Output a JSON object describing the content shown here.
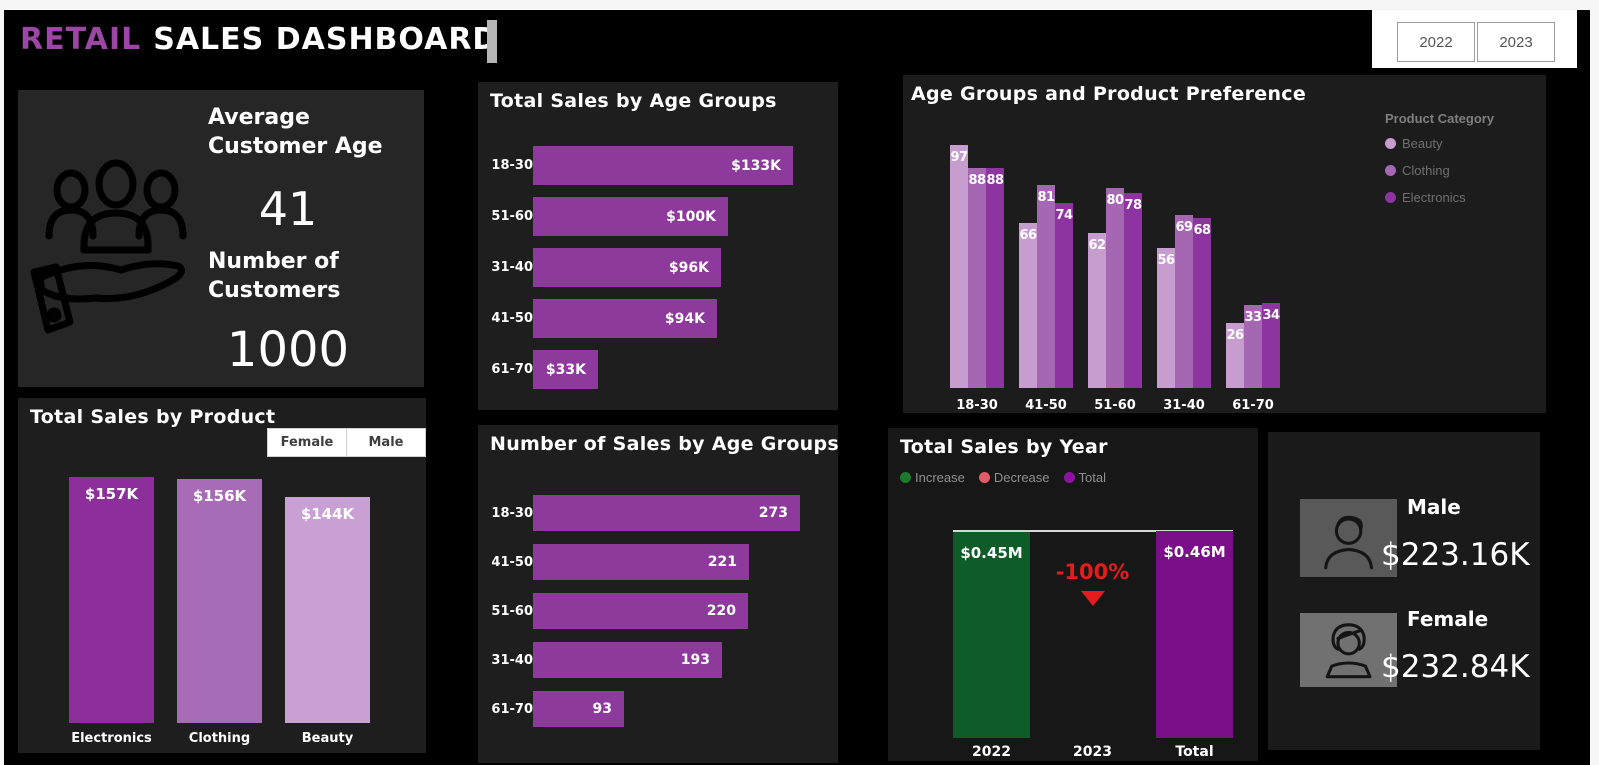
{
  "header": {
    "title_accent": "RETAIL",
    "title_rest": "SALES DASHBOARD",
    "accent_color": "#9c46a5"
  },
  "year_filter": {
    "buttons": [
      "2022",
      "2023"
    ]
  },
  "gender_filter": {
    "buttons": [
      "Female",
      "Male"
    ]
  },
  "kpi_card": {
    "avg_label": "Average Customer Age",
    "avg_value": "41",
    "count_label": "Number of Customers",
    "count_value": "1000",
    "icon": "people-in-hand-icon"
  },
  "gender_card": {
    "male_label": "Male",
    "male_value": "$223.16K",
    "female_label": "Female",
    "female_value": "$232.84K"
  },
  "palette": {
    "purple_dark": "#8c2f9b",
    "purple_mid": "#a667b2",
    "purple_light": "#c79ccf",
    "hbar_purple": "#8e3a9d",
    "increase_green": "#0e5c28",
    "total_purple": "#7a0d88",
    "decrease_red": "#e51c1c"
  },
  "chart_data": [
    {
      "id": "total_sales_by_product",
      "type": "bar",
      "title": "Total Sales by Product",
      "categories": [
        "Electronics",
        "Clothing",
        "Beauty"
      ],
      "values": [
        157,
        156,
        144
      ],
      "labels": [
        "$157K",
        "$156K",
        "$144K"
      ],
      "bar_colors": [
        "#8c2f9b",
        "#a86bb5",
        "#c9a0d4"
      ],
      "ylim": [
        0,
        157
      ],
      "grid": false
    },
    {
      "id": "total_sales_by_age_groups",
      "type": "bar-horizontal",
      "title": "Total Sales by Age Groups",
      "categories": [
        "18-30",
        "51-60",
        "31-40",
        "41-50",
        "61-70"
      ],
      "values": [
        133,
        100,
        96,
        94,
        33
      ],
      "labels": [
        "$133K",
        "$100K",
        "$96K",
        "$94K",
        "$33K"
      ],
      "bar_color": "#8e3a9d",
      "xlim": [
        0,
        133
      ],
      "grid": false
    },
    {
      "id": "number_of_sales_by_age_groups",
      "type": "bar-horizontal",
      "title": "Number of Sales by Age Groups",
      "categories": [
        "18-30",
        "41-50",
        "51-60",
        "31-40",
        "61-70"
      ],
      "values": [
        273,
        221,
        220,
        193,
        93
      ],
      "labels": [
        "273",
        "221",
        "220",
        "193",
        "93"
      ],
      "bar_color": "#8e3a9d",
      "xlim": [
        0,
        273
      ],
      "grid": false
    },
    {
      "id": "age_groups_and_product_preference",
      "type": "bar-grouped",
      "title": "Age Groups and Product Preference",
      "legend_title": "Product Category",
      "legend_position": "right",
      "categories": [
        "18-30",
        "41-50",
        "51-60",
        "31-40",
        "61-70"
      ],
      "series": [
        {
          "name": "Beauty",
          "color": "#c79ccf",
          "values": [
            97,
            66,
            62,
            56,
            26
          ]
        },
        {
          "name": "Clothing",
          "color": "#a667b2",
          "values": [
            88,
            81,
            80,
            69,
            33
          ]
        },
        {
          "name": "Electronics",
          "color": "#8e34a0",
          "values": [
            88,
            74,
            78,
            68,
            34
          ]
        }
      ],
      "ylim": [
        0,
        97
      ],
      "grid": false
    },
    {
      "id": "total_sales_by_year",
      "type": "waterfall",
      "title": "Total Sales by Year",
      "legend": [
        {
          "label": "Increase",
          "color": "#1b7a2b"
        },
        {
          "label": "Decrease",
          "color": "#e25c6a"
        },
        {
          "label": "Total",
          "color": "#8c13a0"
        }
      ],
      "columns": [
        {
          "category": "2022",
          "label": "$0.45M",
          "kind": "increase",
          "color": "#0e5c28"
        },
        {
          "category": "2023",
          "label": "-100%",
          "kind": "decrease",
          "color": "#e51c1c"
        },
        {
          "category": "Total",
          "label": "$0.46M",
          "kind": "total",
          "color": "#7a0d88"
        }
      ]
    }
  ]
}
